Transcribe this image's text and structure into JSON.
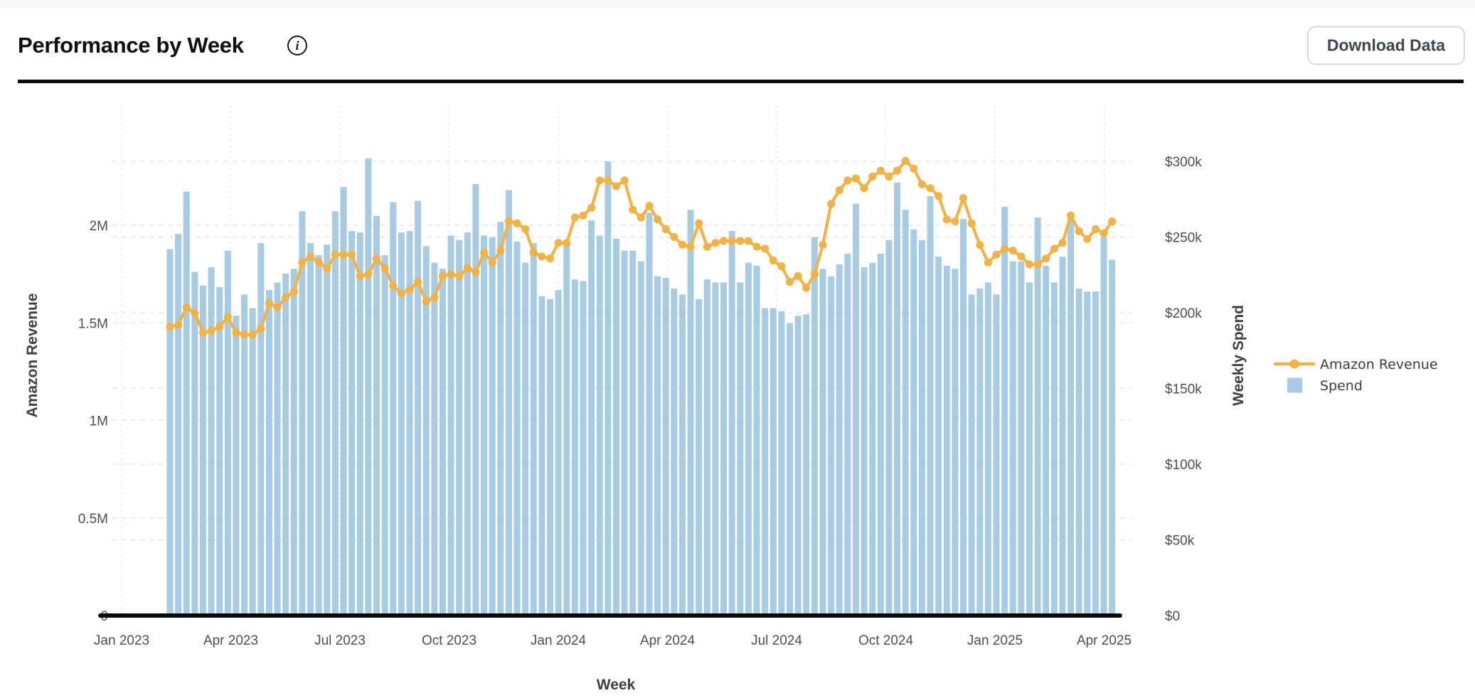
{
  "header": {
    "title": "Performance by Week",
    "info_icon": "i",
    "download_button_label": "Download Data"
  },
  "chart_data": {
    "type": "bar+line (dual y-axis)",
    "title": "Performance by Week",
    "xlabel": "Week",
    "ylabel_left": "Amazon Revenue",
    "ylabel_right": "Weekly Spend",
    "x_tick_labels": [
      "Jan 2023",
      "Apr 2023",
      "Jul 2023",
      "Oct 2023",
      "Jan 2024",
      "Apr 2024",
      "Jul 2024",
      "Oct 2024",
      "Jan 2025",
      "Apr 2025"
    ],
    "left_axis": {
      "tick_labels": [
        "0",
        "0.5M",
        "1M",
        "1.5M",
        "2M"
      ],
      "tick_values_millions": [
        0,
        0.5,
        1,
        1.5,
        2
      ],
      "range_millions": [
        0,
        2.61
      ]
    },
    "right_axis": {
      "tick_labels": [
        "$0",
        "$50k",
        "$100k",
        "$150k",
        "$200k",
        "$250k",
        "$300k"
      ],
      "tick_values_thousands": [
        0,
        50,
        100,
        150,
        200,
        250,
        300
      ],
      "range_thousands": [
        0,
        336
      ]
    },
    "grid": "dashed, both axes tick sets, horizontal and vertical",
    "legend": {
      "position": "right of plot",
      "entries": [
        {
          "label": "Amazon Revenue",
          "glyph": "line-with-dot",
          "color": "#f2b344"
        },
        {
          "label": "Spend",
          "glyph": "square",
          "color": "#a6cbe2"
        }
      ]
    },
    "n_weeks": 115,
    "first_week_offset_weeks_after_jan2023": 6,
    "series": [
      {
        "name": "Amazon Revenue",
        "axis": "left",
        "kind": "line",
        "color": "#f2b344",
        "unit": "millions_usd",
        "values": [
          1.48,
          1.49,
          1.58,
          1.55,
          1.45,
          1.46,
          1.48,
          1.53,
          1.45,
          1.44,
          1.44,
          1.47,
          1.6,
          1.58,
          1.63,
          1.66,
          1.81,
          1.84,
          1.81,
          1.78,
          1.85,
          1.85,
          1.85,
          1.74,
          1.75,
          1.83,
          1.78,
          1.69,
          1.65,
          1.67,
          1.71,
          1.61,
          1.63,
          1.74,
          1.75,
          1.74,
          1.78,
          1.76,
          1.86,
          1.81,
          1.87,
          2.02,
          2.01,
          1.98,
          1.86,
          1.84,
          1.83,
          1.91,
          1.91,
          2.04,
          2.05,
          2.09,
          2.23,
          2.23,
          2.2,
          2.23,
          2.08,
          2.04,
          2.1,
          2.03,
          1.98,
          1.94,
          1.9,
          1.89,
          2.01,
          1.89,
          1.91,
          1.92,
          1.92,
          1.92,
          1.92,
          1.89,
          1.88,
          1.82,
          1.79,
          1.71,
          1.74,
          1.68,
          1.75,
          1.9,
          2.11,
          2.18,
          2.23,
          2.24,
          2.19,
          2.25,
          2.28,
          2.25,
          2.28,
          2.33,
          2.29,
          2.21,
          2.19,
          2.15,
          2.03,
          2.02,
          2.14,
          2.01,
          1.9,
          1.81,
          1.85,
          1.88,
          1.87,
          1.84,
          1.8,
          1.8,
          1.83,
          1.88,
          1.91,
          2.05,
          1.97,
          1.93,
          1.98,
          1.96,
          2.02
        ]
      },
      {
        "name": "Spend",
        "axis": "right",
        "kind": "bar",
        "color": "#a6cbe2",
        "unit": "thousands_usd",
        "values": [
          242,
          252,
          280,
          227,
          218,
          230,
          217,
          241,
          198,
          212,
          203,
          246,
          215,
          220,
          226,
          229,
          267,
          246,
          238,
          245,
          267,
          283,
          254,
          253,
          302,
          264,
          238,
          273,
          253,
          254,
          274,
          244,
          233,
          229,
          251,
          248,
          253,
          285,
          251,
          250,
          260,
          281,
          247,
          233,
          246,
          211,
          209,
          215,
          248,
          222,
          221,
          261,
          251,
          300,
          249,
          241,
          241,
          234,
          266,
          224,
          223,
          216,
          212,
          268,
          209,
          222,
          220,
          220,
          254,
          220,
          233,
          231,
          203,
          203,
          201,
          193,
          198,
          199,
          250,
          229,
          224,
          232,
          239,
          272,
          230,
          233,
          239,
          248,
          286,
          268,
          255,
          248,
          277,
          237,
          231,
          229,
          262,
          212,
          216,
          220,
          212,
          270,
          234,
          234,
          220,
          263,
          231,
          220,
          237,
          266,
          216,
          214,
          214,
          250,
          235
        ]
      }
    ],
    "colors": {
      "bar": "#a6cbe2",
      "line": "#f2b344",
      "grid": "#e6e7e9",
      "axis_spine": "#0a0a0a",
      "tick_text": "#4a4f57",
      "axis_title_text": "#3c4048"
    }
  }
}
